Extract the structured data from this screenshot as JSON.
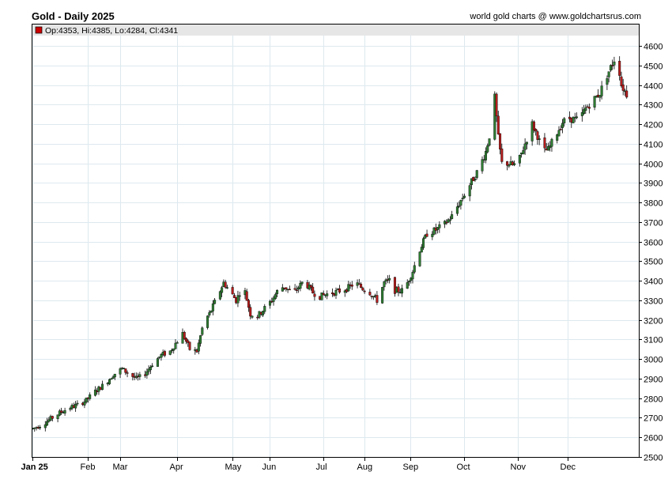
{
  "header": {
    "title": "Gold - Daily 2025",
    "credit": "world gold charts @ www.goldchartsrus.com"
  },
  "legend": {
    "text": "Op:4353, Hi:4385, Lo:4284, Cl:4341",
    "swatch_color": "#cc0000"
  },
  "colors": {
    "up": "#2e7d32",
    "down": "#b71c1c",
    "grid": "#dde9ef",
    "legend_bg": "#e6e6e6"
  },
  "chart_data": {
    "type": "candlestick",
    "title": "Gold - Daily 2025",
    "y_axis_side": "right",
    "ylim": [
      2500,
      4600
    ],
    "yticks": [
      2500,
      2600,
      2700,
      2800,
      2900,
      3000,
      3100,
      3200,
      3300,
      3400,
      3500,
      3600,
      3700,
      3800,
      3900,
      4000,
      4100,
      4200,
      4300,
      4400,
      4500,
      4600
    ],
    "months": [
      {
        "label": "Jan 25",
        "day": 0
      },
      {
        "label": "Feb",
        "day": 31
      },
      {
        "label": "Mar",
        "day": 49
      },
      {
        "label": "Apr",
        "day": 81
      },
      {
        "label": "May",
        "day": 112
      },
      {
        "label": "Jun",
        "day": 133
      },
      {
        "label": "Jul",
        "day": 163
      },
      {
        "label": "Aug",
        "day": 186
      },
      {
        "label": "Sep",
        "day": 212
      },
      {
        "label": "Oct",
        "day": 242
      },
      {
        "label": "Nov",
        "day": 272
      },
      {
        "label": "Dec",
        "day": 300
      }
    ],
    "x_days_total": 340,
    "grid": true,
    "anchors": [
      [
        0,
        2645
      ],
      [
        5,
        2665
      ],
      [
        10,
        2695
      ],
      [
        15,
        2725
      ],
      [
        20,
        2750
      ],
      [
        25,
        2765
      ],
      [
        30,
        2790
      ],
      [
        35,
        2835
      ],
      [
        40,
        2870
      ],
      [
        45,
        2920
      ],
      [
        50,
        2950
      ],
      [
        53,
        2930
      ],
      [
        58,
        2900
      ],
      [
        62,
        2915
      ],
      [
        67,
        2975
      ],
      [
        72,
        3020
      ],
      [
        77,
        3040
      ],
      [
        80,
        3080
      ],
      [
        84,
        3130
      ],
      [
        88,
        3050
      ],
      [
        92,
        3040
      ],
      [
        96,
        3195
      ],
      [
        99,
        3230
      ],
      [
        103,
        3310
      ],
      [
        107,
        3390
      ],
      [
        111,
        3340
      ],
      [
        114,
        3300
      ],
      [
        118,
        3380
      ],
      [
        122,
        3230
      ],
      [
        126,
        3220
      ],
      [
        130,
        3260
      ],
      [
        134,
        3300
      ],
      [
        138,
        3360
      ],
      [
        141,
        3370
      ],
      [
        146,
        3335
      ],
      [
        152,
        3400
      ],
      [
        157,
        3340
      ],
      [
        161,
        3320
      ],
      [
        166,
        3335
      ],
      [
        171,
        3345
      ],
      [
        176,
        3360
      ],
      [
        181,
        3390
      ],
      [
        185,
        3360
      ],
      [
        189,
        3340
      ],
      [
        193,
        3300
      ],
      [
        197,
        3390
      ],
      [
        200,
        3400
      ],
      [
        203,
        3350
      ],
      [
        207,
        3350
      ],
      [
        210,
        3390
      ],
      [
        213,
        3450
      ],
      [
        217,
        3560
      ],
      [
        221,
        3640
      ],
      [
        226,
        3660
      ],
      [
        231,
        3690
      ],
      [
        235,
        3730
      ],
      [
        240,
        3810
      ],
      [
        245,
        3890
      ],
      [
        250,
        3970
      ],
      [
        254,
        4060
      ],
      [
        257,
        4180
      ],
      [
        259,
        4335
      ],
      [
        261,
        4130
      ],
      [
        263,
        4000
      ],
      [
        266,
        4000
      ],
      [
        269,
        3990
      ],
      [
        272,
        4000
      ],
      [
        276,
        4100
      ],
      [
        280,
        4200
      ],
      [
        283,
        4140
      ],
      [
        286,
        4060
      ],
      [
        289,
        4070
      ],
      [
        293,
        4140
      ],
      [
        297,
        4210
      ],
      [
        301,
        4230
      ],
      [
        306,
        4220
      ],
      [
        310,
        4280
      ],
      [
        314,
        4320
      ],
      [
        318,
        4360
      ],
      [
        322,
        4450
      ],
      [
        326,
        4530
      ],
      [
        328,
        4530
      ],
      [
        330,
        4400
      ],
      [
        333,
        4353
      ],
      [
        335,
        4341
      ]
    ],
    "last_candle": {
      "open": 4353,
      "high": 4385,
      "low": 4284,
      "close": 4341
    }
  }
}
